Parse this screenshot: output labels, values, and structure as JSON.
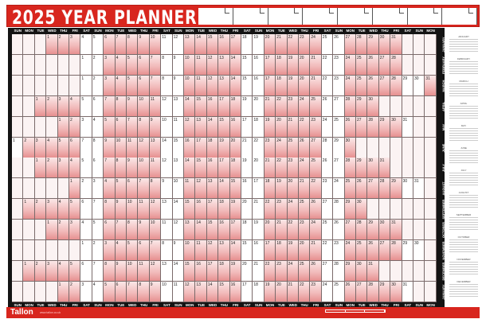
{
  "title": "2025 YEAR PLANNER",
  "day_headers": [
    "SUN",
    "MON",
    "TUE",
    "WED",
    "THU",
    "FRI",
    "SAT"
  ],
  "months": [
    {
      "label": "JANUARY",
      "first_weekday": 3,
      "days": 31
    },
    {
      "label": "FEBRUARY",
      "first_weekday": 6,
      "days": 28
    },
    {
      "label": "MARCH",
      "first_weekday": 6,
      "days": 31
    },
    {
      "label": "APRIL",
      "first_weekday": 2,
      "days": 30
    },
    {
      "label": "MAY",
      "first_weekday": 4,
      "days": 31
    },
    {
      "label": "JUNE",
      "first_weekday": 0,
      "days": 30
    },
    {
      "label": "JULY",
      "first_weekday": 2,
      "days": 31
    },
    {
      "label": "AUGUST",
      "first_weekday": 5,
      "days": 31
    },
    {
      "label": "SEPTEMBER",
      "first_weekday": 1,
      "days": 30
    },
    {
      "label": "OCTOBER",
      "first_weekday": 3,
      "days": 31
    },
    {
      "label": "NOVEMBER",
      "first_weekday": 6,
      "days": 30
    },
    {
      "label": "DECEMBER",
      "first_weekday": 1,
      "days": 31
    },
    {
      "label": "JANUARY",
      "first_weekday": 4,
      "days": 31
    }
  ],
  "mini_calendars": [
    "JANUARY",
    "FEBRUARY",
    "MARCH",
    "APRIL",
    "MAY",
    "JUNE",
    "JULY",
    "AUGUST",
    "SEPTEMBER",
    "OCTOBER",
    "NOVEMBER",
    "DECEMBER"
  ],
  "footer": {
    "brand": "Tallon",
    "website": "www.tallon.co.uk"
  },
  "colors": {
    "accent": "#d8261e",
    "grid_frame": "#141414",
    "weekday_fill": "#f1b8b8"
  }
}
